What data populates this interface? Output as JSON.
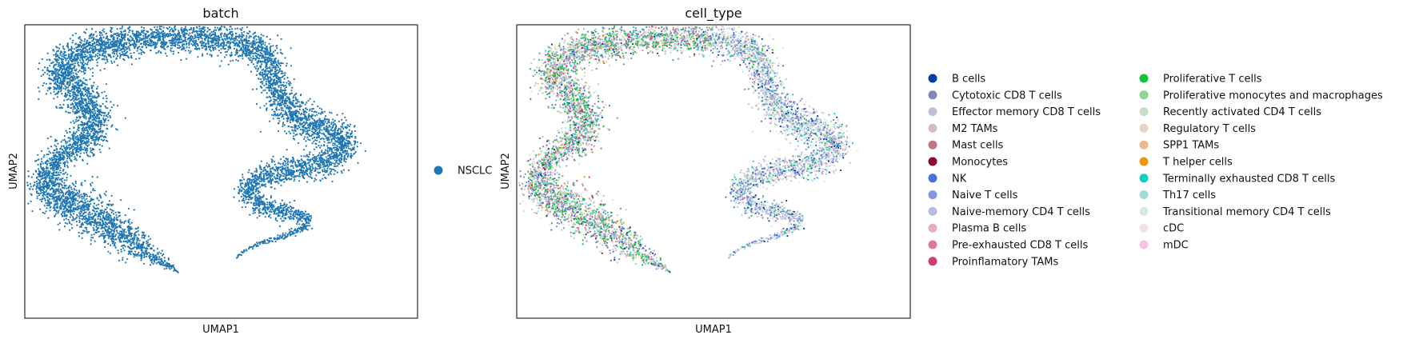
{
  "chart_data": [
    {
      "type": "scatter",
      "title": "batch",
      "xlabel": "UMAP1",
      "ylabel": "UMAP2",
      "xticks": [],
      "yticks": [],
      "legend": {
        "placement": "right",
        "entries": [
          {
            "label": "NSCLC",
            "color": "#1f77b4"
          }
        ]
      }
    },
    {
      "type": "scatter",
      "title": "cell_type",
      "xlabel": "UMAP1",
      "ylabel": "UMAP2",
      "xticks": [],
      "yticks": [],
      "legend": {
        "placement": "right",
        "columns": 2,
        "entries": [
          {
            "label": "B cells",
            "color": "#023fa5"
          },
          {
            "label": "Cytotoxic CD8 T cells",
            "color": "#7d87b9"
          },
          {
            "label": "Effector memory CD8 T cells",
            "color": "#bec1d4"
          },
          {
            "label": "M2 TAMs",
            "color": "#d6bcc0"
          },
          {
            "label": "Mast cells",
            "color": "#bb7784"
          },
          {
            "label": "Monocytes",
            "color": "#8e063b"
          },
          {
            "label": "NK",
            "color": "#4a6fe3"
          },
          {
            "label": "Naive T cells",
            "color": "#8595e1"
          },
          {
            "label": "Naive-memory CD4 T cells",
            "color": "#b5bbe3"
          },
          {
            "label": "Plasma B cells",
            "color": "#e6afb9"
          },
          {
            "label": "Pre-exhausted CD8 T cells",
            "color": "#e07b91"
          },
          {
            "label": "Proinflamatory TAMs",
            "color": "#d33f6a"
          },
          {
            "label": "Proliferative T cells",
            "color": "#11c638"
          },
          {
            "label": "Proliferative monocytes and macrophages",
            "color": "#8dd593"
          },
          {
            "label": "Recently activated CD4 T cells",
            "color": "#c6dec7"
          },
          {
            "label": "Regulatory T cells",
            "color": "#ead3c6"
          },
          {
            "label": "SPP1 TAMs",
            "color": "#f0b98d"
          },
          {
            "label": "T helper cells",
            "color": "#ef9708"
          },
          {
            "label": "Terminally exhausted CD8 T cells",
            "color": "#0fcfc0"
          },
          {
            "label": "Th17 cells",
            "color": "#9cded6"
          },
          {
            "label": "Transitional memory CD4 T cells",
            "color": "#d5eae7"
          },
          {
            "label": "cDC",
            "color": "#f3e1eb"
          },
          {
            "label": "mDC",
            "color": "#f6c4e1"
          }
        ]
      }
    }
  ]
}
